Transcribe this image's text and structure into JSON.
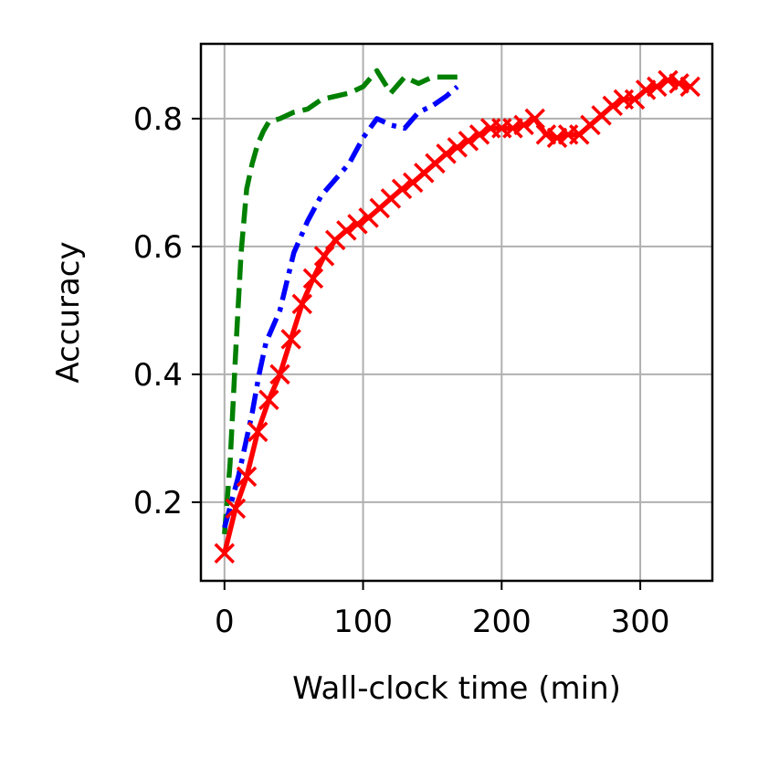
{
  "chart_data": {
    "type": "line",
    "xlabel": "Wall-clock time (min)",
    "ylabel": "Accuracy",
    "xlim": [
      -17,
      352
    ],
    "ylim": [
      0.077,
      0.917
    ],
    "xticks": [
      0,
      100,
      200,
      300
    ],
    "xtick_labels": [
      "0",
      "100",
      "200",
      "300"
    ],
    "yticks": [
      0.2,
      0.4,
      0.6,
      0.8
    ],
    "ytick_labels": [
      "0.2",
      "0.4",
      "0.6",
      "0.8"
    ],
    "grid": true,
    "series": [
      {
        "color": "#008000",
        "linestyle": "dashed",
        "marker": "none",
        "x": [
          0,
          4,
          8,
          12,
          16,
          20,
          24,
          28,
          32,
          40,
          50,
          60,
          70,
          80,
          90,
          100,
          110,
          120,
          130,
          140,
          150,
          160,
          168
        ],
        "y": [
          0.15,
          0.26,
          0.43,
          0.59,
          0.69,
          0.73,
          0.76,
          0.78,
          0.795,
          0.8,
          0.81,
          0.815,
          0.83,
          0.835,
          0.84,
          0.85,
          0.875,
          0.84,
          0.865,
          0.855,
          0.865,
          0.865,
          0.865
        ]
      },
      {
        "color": "#0000ff",
        "linestyle": "dashdot",
        "marker": "none",
        "x": [
          0,
          5,
          10,
          15,
          20,
          25,
          30,
          40,
          50,
          60,
          70,
          80,
          90,
          100,
          110,
          120,
          130,
          140,
          150,
          160,
          168
        ],
        "y": [
          0.16,
          0.2,
          0.24,
          0.29,
          0.34,
          0.4,
          0.45,
          0.5,
          0.59,
          0.64,
          0.68,
          0.705,
          0.73,
          0.77,
          0.8,
          0.79,
          0.785,
          0.81,
          0.82,
          0.835,
          0.85
        ]
      },
      {
        "color": "#ff0000",
        "linestyle": "solid",
        "marker": "x",
        "x": [
          0,
          8,
          16,
          24,
          32,
          40,
          48,
          56,
          64,
          72,
          80,
          88,
          96,
          104,
          112,
          120,
          128,
          136,
          144,
          152,
          160,
          168,
          176,
          184,
          192,
          200,
          208,
          216,
          224,
          232,
          240,
          248,
          256,
          264,
          272,
          280,
          288,
          296,
          304,
          312,
          320,
          328,
          336
        ],
        "y": [
          0.12,
          0.19,
          0.24,
          0.31,
          0.36,
          0.4,
          0.455,
          0.51,
          0.55,
          0.585,
          0.61,
          0.625,
          0.635,
          0.645,
          0.66,
          0.675,
          0.69,
          0.7,
          0.715,
          0.73,
          0.745,
          0.755,
          0.765,
          0.775,
          0.785,
          0.785,
          0.785,
          0.79,
          0.8,
          0.775,
          0.77,
          0.775,
          0.775,
          0.79,
          0.805,
          0.82,
          0.83,
          0.83,
          0.845,
          0.85,
          0.86,
          0.855,
          0.85
        ]
      }
    ]
  }
}
